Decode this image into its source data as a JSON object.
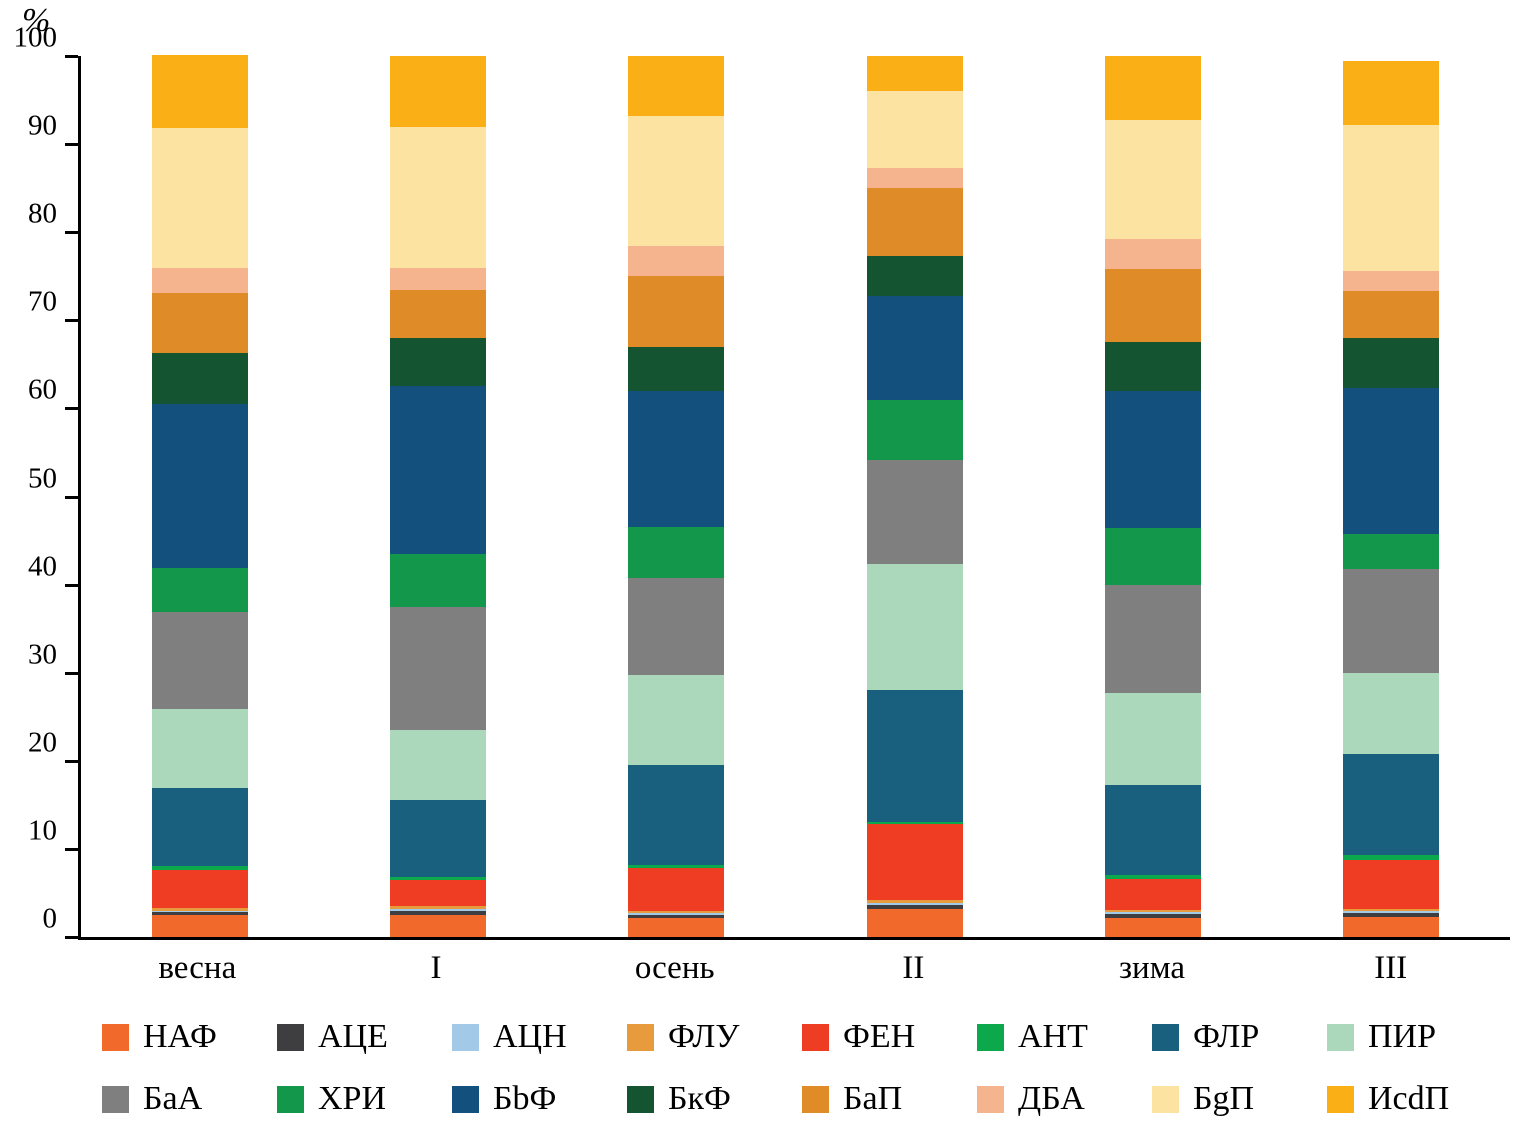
{
  "axis": {
    "unit_label": "%",
    "y_ticks": [
      0,
      10,
      20,
      30,
      40,
      50,
      60,
      70,
      80,
      90,
      100
    ]
  },
  "chart_data": {
    "type": "bar",
    "stacked": true,
    "title": "",
    "xlabel": "",
    "ylabel": "%",
    "ylim": [
      0,
      100
    ],
    "grid": false,
    "legend_position": "bottom",
    "categories": [
      "весна",
      "I",
      "осень",
      "II",
      "зима",
      "III"
    ],
    "series": [
      {
        "name": "НАФ",
        "color": "#F16A2B",
        "values": [
          2.5,
          2.5,
          2.2,
          3.2,
          2.2,
          2.3
        ]
      },
      {
        "name": "АЦЕ",
        "color": "#3E3E40",
        "values": [
          0.3,
          0.4,
          0.3,
          0.4,
          0.4,
          0.4
        ]
      },
      {
        "name": "АЦН",
        "color": "#A3C9E8",
        "values": [
          0.2,
          0.3,
          0.2,
          0.3,
          0.2,
          0.2
        ]
      },
      {
        "name": "ФЛУ",
        "color": "#E79B3C",
        "values": [
          0.3,
          0.3,
          0.3,
          0.3,
          0.3,
          0.3
        ]
      },
      {
        "name": "ФЕН",
        "color": "#EE3D23",
        "values": [
          4.3,
          3.0,
          4.8,
          8.6,
          3.5,
          5.6
        ]
      },
      {
        "name": "АНТ",
        "color": "#0CA94C",
        "values": [
          0.5,
          0.3,
          0.4,
          0.3,
          0.4,
          0.5
        ]
      },
      {
        "name": "ФЛР",
        "color": "#19607E",
        "values": [
          8.8,
          8.7,
          11.3,
          14.9,
          10.3,
          11.5
        ]
      },
      {
        "name": "ПИР",
        "color": "#ABD8BB",
        "values": [
          9.0,
          8.0,
          10.3,
          14.3,
          10.4,
          9.2
        ]
      },
      {
        "name": "БаА",
        "color": "#7F7F7F",
        "values": [
          11.0,
          14.0,
          11.0,
          11.9,
          12.3,
          11.8
        ]
      },
      {
        "name": "ХРИ",
        "color": "#12974B",
        "values": [
          5.0,
          6.0,
          5.7,
          6.8,
          6.4,
          4.0
        ]
      },
      {
        "name": "БbФ",
        "color": "#14507D",
        "values": [
          18.6,
          19.0,
          15.5,
          11.8,
          15.6,
          16.5
        ]
      },
      {
        "name": "БкФ",
        "color": "#155430",
        "values": [
          5.8,
          5.5,
          5.0,
          4.5,
          5.6,
          5.7
        ]
      },
      {
        "name": "БаП",
        "color": "#DF8C28",
        "values": [
          6.8,
          5.5,
          8.0,
          7.7,
          8.2,
          5.3
        ]
      },
      {
        "name": "ДБА",
        "color": "#F6B48E",
        "values": [
          2.8,
          2.5,
          3.5,
          2.3,
          3.4,
          2.3
        ]
      },
      {
        "name": "БgП",
        "color": "#FCE3A1",
        "values": [
          15.9,
          16.0,
          14.7,
          8.7,
          13.5,
          16.6
        ]
      },
      {
        "name": "ИсdП",
        "color": "#F9AF15",
        "values": [
          8.3,
          8.0,
          6.8,
          4.0,
          7.3,
          7.3
        ]
      }
    ]
  }
}
